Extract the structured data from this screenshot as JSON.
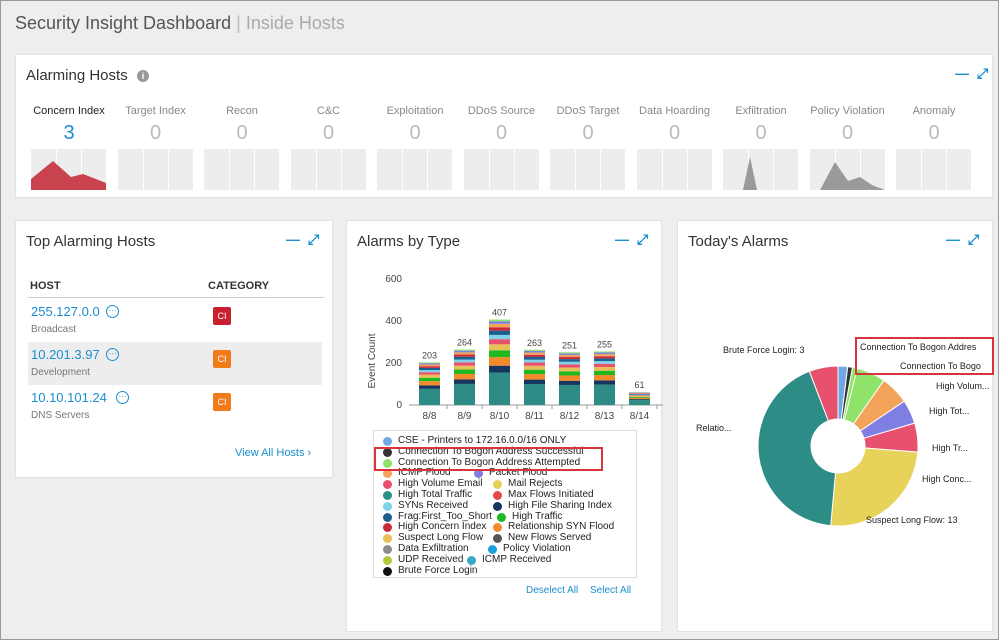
{
  "header": {
    "title": "Security Insight Dashboard",
    "separator": "|",
    "subtitle": "Inside Hosts"
  },
  "controls": {
    "minimize": "—",
    "expand": "⤢"
  },
  "alarming_hosts": {
    "title": "Alarming Hosts",
    "info_icon": "i",
    "metrics": [
      {
        "label": "Concern Index",
        "value": "3",
        "active": true
      },
      {
        "label": "Target Index",
        "value": "0"
      },
      {
        "label": "Recon",
        "value": "0"
      },
      {
        "label": "C&C",
        "value": "0"
      },
      {
        "label": "Exploitation",
        "value": "0"
      },
      {
        "label": "DDoS Source",
        "value": "0"
      },
      {
        "label": "DDoS Target",
        "value": "0"
      },
      {
        "label": "Data Hoarding",
        "value": "0"
      },
      {
        "label": "Exfiltration",
        "value": "0"
      },
      {
        "label": "Policy Violation",
        "value": "0"
      },
      {
        "label": "Anomaly",
        "value": "0"
      }
    ]
  },
  "top_hosts": {
    "title": "Top Alarming Hosts",
    "col_host": "HOST",
    "col_category": "CATEGORY",
    "rows": [
      {
        "ip": "255.127.0.0",
        "group": "Broadcast",
        "badge": "CI",
        "badge_color": "#c8202f"
      },
      {
        "ip": "10.201.3.97",
        "group": "Development",
        "badge": "CI",
        "badge_color": "#f07b18"
      },
      {
        "ip": "10.10.101.24",
        "group": "DNS Servers",
        "badge": "CI",
        "badge_color": "#f07b18"
      }
    ],
    "view_all": "View All Hosts ›"
  },
  "alarms_by_type": {
    "title": "Alarms by Type",
    "legend": [
      {
        "label": "CSE - Printers to 172.16.0.0/16 ONLY",
        "color": "#6fa8e6"
      },
      {
        "label": "Connection To Bogon Address Successful",
        "color": "#333333"
      },
      {
        "label": "Connection To Bogon Address Attempted",
        "color": "#8fe36a"
      },
      {
        "label": "ICMP Flood",
        "color": "#f4a45a"
      },
      {
        "label": "Packet Flood",
        "color": "#7f7fe3"
      },
      {
        "label": "High Volume Email",
        "color": "#e8516e"
      },
      {
        "label": "Mail Rejects",
        "color": "#e8cf5a"
      },
      {
        "label": "High Total Traffic",
        "color": "#2a9189"
      },
      {
        "label": "Max Flows Initiated",
        "color": "#e24a4a"
      },
      {
        "label": "SYNs Received",
        "color": "#7fd3e8"
      },
      {
        "label": "High File Sharing Index",
        "color": "#17365f"
      },
      {
        "label": "Frag:First_Too_Short",
        "color": "#1a5f8e"
      },
      {
        "label": "High Traffic",
        "color": "#1fb81f"
      },
      {
        "label": "High Concern Index",
        "color": "#c72b3a"
      },
      {
        "label": "Relationship SYN Flood",
        "color": "#f28a2c"
      },
      {
        "label": "Suspect Long Flow",
        "color": "#e8c05a"
      },
      {
        "label": "New Flows Served",
        "color": "#555555"
      },
      {
        "label": "Data Exfiltration",
        "color": "#8c8c8c"
      },
      {
        "label": "Policy Violation",
        "color": "#1aa0d8"
      },
      {
        "label": "UDP Received",
        "color": "#b7c93a"
      },
      {
        "label": "ICMP Received",
        "color": "#3aa8c9"
      },
      {
        "label": "Brute Force Login",
        "color": "#111111"
      }
    ],
    "deselect_all": "Deselect All",
    "select_all": "Select All"
  },
  "todays_alarms": {
    "title": "Today's Alarms"
  },
  "chart_data": [
    {
      "type": "bar",
      "title": "Alarms by Type",
      "xlabel": "",
      "ylabel": "Event Count",
      "ylim": [
        0,
        600
      ],
      "yticks": [
        0,
        200,
        400,
        600
      ],
      "categories": [
        "8/8",
        "8/9",
        "8/10",
        "8/11",
        "8/12",
        "8/13",
        "8/14"
      ],
      "values": [
        203,
        264,
        407,
        263,
        251,
        255,
        61
      ],
      "stacked": true
    },
    {
      "type": "pie",
      "title": "Today's Alarms",
      "donut": true,
      "slices": [
        {
          "label": "CSE - Printers to 172.16.0.0/16 ONLY",
          "value": 1,
          "color": "#6fa8e6"
        },
        {
          "label": "Connection To Bogon Address Successful",
          "value": 0.5,
          "color": "#333333"
        },
        {
          "label": "Connection To Bogon Address Attempted",
          "value": 0.5,
          "color": "#8fe36a",
          "shown": "Connection To Bogo"
        },
        {
          "label": "High Volume Email",
          "value": 3,
          "color": "#8fe36a",
          "shown": "High Volum..."
        },
        {
          "label": "High Total Traffic",
          "value": 3,
          "color": "#f4a45a",
          "shown": "High Tot..."
        },
        {
          "label": "High Traffic",
          "value": 2.5,
          "color": "#7f7fe3",
          "shown": "High Tr..."
        },
        {
          "label": "High Concern Index",
          "value": 3,
          "color": "#e8516e",
          "shown": "High Conc..."
        },
        {
          "label": "Suspect Long Flow",
          "value": 13,
          "color": "#e8d35a",
          "shown": "Suspect Long Flow: 13"
        },
        {
          "label": "Relationship SYN Flood",
          "value": 22,
          "color": "#2e8c86",
          "shown": "Relatio..."
        },
        {
          "label": "Brute Force Login",
          "value": 3,
          "color": "#e8516e",
          "shown": "Brute Force Login: 3"
        }
      ],
      "callout_text": "Connection To Bogon Addres"
    }
  ]
}
